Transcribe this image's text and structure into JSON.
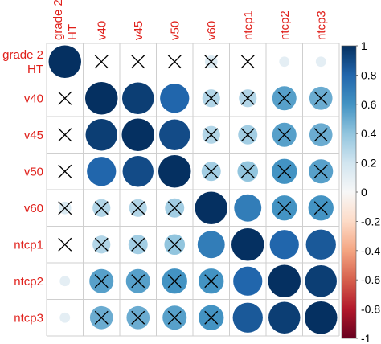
{
  "chart_data": {
    "type": "heatmap",
    "variables": [
      "grade 2 HT",
      "v40",
      "v45",
      "v50",
      "v60",
      "ntcp1",
      "ntcp2",
      "ntcp3"
    ],
    "labels_display": [
      [
        "grade 2",
        "HT"
      ],
      [
        "v40"
      ],
      [
        "v45"
      ],
      [
        "v50"
      ],
      [
        "v60"
      ],
      [
        "ntcp1"
      ],
      [
        "ntcp2"
      ],
      [
        "ntcp3"
      ]
    ],
    "matrix": [
      [
        1.0,
        0.0,
        0.0,
        0.0,
        0.15,
        0.0,
        0.1,
        0.1
      ],
      [
        0.0,
        1.0,
        0.95,
        0.8,
        0.3,
        0.3,
        0.55,
        0.5
      ],
      [
        0.0,
        0.95,
        1.0,
        0.9,
        0.3,
        0.35,
        0.55,
        0.5
      ],
      [
        0.0,
        0.8,
        0.9,
        1.0,
        0.35,
        0.4,
        0.6,
        0.55
      ],
      [
        0.15,
        0.3,
        0.3,
        0.35,
        1.0,
        0.7,
        0.6,
        0.6
      ],
      [
        0.0,
        0.3,
        0.35,
        0.4,
        0.7,
        1.0,
        0.8,
        0.85
      ],
      [
        0.1,
        0.55,
        0.55,
        0.6,
        0.6,
        0.8,
        1.0,
        0.95
      ],
      [
        0.1,
        0.5,
        0.5,
        0.55,
        0.6,
        0.85,
        0.95,
        1.0
      ]
    ],
    "not_significant": [
      [
        false,
        true,
        true,
        true,
        true,
        true,
        false,
        false
      ],
      [
        true,
        false,
        false,
        false,
        true,
        true,
        true,
        true
      ],
      [
        true,
        false,
        false,
        false,
        true,
        true,
        true,
        true
      ],
      [
        true,
        false,
        false,
        false,
        true,
        true,
        true,
        true
      ],
      [
        true,
        true,
        true,
        true,
        false,
        false,
        true,
        true
      ],
      [
        true,
        true,
        true,
        true,
        false,
        false,
        false,
        false
      ],
      [
        false,
        true,
        true,
        true,
        true,
        false,
        false,
        false
      ],
      [
        false,
        true,
        true,
        true,
        true,
        false,
        false,
        false
      ]
    ],
    "color_scale": {
      "min": -1,
      "max": 1,
      "colors": [
        "#67001f",
        "#b2182b",
        "#d6604d",
        "#f4a582",
        "#fddbc7",
        "#f7f7f7",
        "#d1e5f0",
        "#92c5de",
        "#4393c3",
        "#2166ac",
        "#053061"
      ]
    },
    "legend_ticks": [
      "1",
      "0.8",
      "0.6",
      "0.4",
      "0.2",
      "0",
      "-0.2",
      "-0.4",
      "-0.6",
      "-0.8",
      "-1"
    ],
    "label_color": "#e0201b",
    "grid": true,
    "legend_position": "right"
  }
}
